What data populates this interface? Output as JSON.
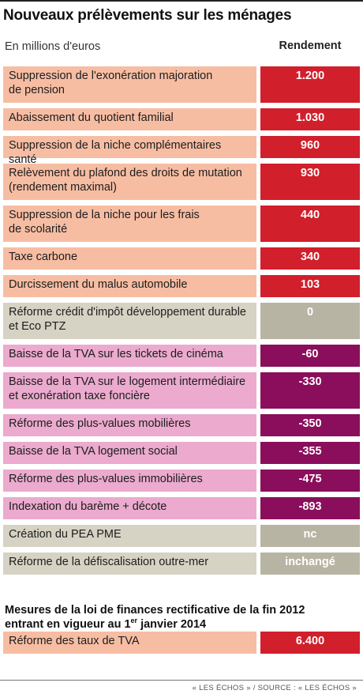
{
  "title": "Nouveaux prélèvements sur les ménages",
  "subtitle": "En millions d'euros",
  "column_header": "Rendement",
  "colors": {
    "positive_label_bg": "#f7bda3",
    "positive_value_bg": "#d11f2b",
    "zero_label_bg": "#d6d3c4",
    "zero_value_bg": "#b8b4a3",
    "negative_label_bg": "#ebaace",
    "negative_value_bg": "#8a0e5b"
  },
  "section2": {
    "title_line1": "Mesures de la loi de finances rectificative de la fin 2012",
    "title_line2_prefix": "entrant en vigueur au 1",
    "title_line2_sup": "er",
    "title_line2_suffix": " janvier 2014"
  },
  "source": "« LES ÉCHOS » / SOURCE : « LES ÉCHOS »",
  "chart_data": {
    "type": "table",
    "title": "Nouveaux prélèvements sur les ménages",
    "subtitle": "En millions d'euros",
    "column": "Rendement",
    "rows": [
      {
        "label_lines": [
          "Suppression de l'exonération majoration",
          "de pension"
        ],
        "value": "1.200",
        "numeric": 1200,
        "kind": "positive"
      },
      {
        "label_lines": [
          "Abaissement du quotient familial"
        ],
        "value": "1.030",
        "numeric": 1030,
        "kind": "positive"
      },
      {
        "label_lines": [
          "Suppression de la niche complémentaires santé"
        ],
        "value": "960",
        "numeric": 960,
        "kind": "positive"
      },
      {
        "label_lines": [
          "Relèvement du plafond des droits de mutation",
          "(rendement maximal)"
        ],
        "value": "930",
        "numeric": 930,
        "kind": "positive"
      },
      {
        "label_lines": [
          "Suppression de la niche pour les frais",
          "de scolarité"
        ],
        "value": "440",
        "numeric": 440,
        "kind": "positive"
      },
      {
        "label_lines": [
          "Taxe carbone"
        ],
        "value": "340",
        "numeric": 340,
        "kind": "positive"
      },
      {
        "label_lines": [
          "Durcissement du malus automobile"
        ],
        "value": "103",
        "numeric": 103,
        "kind": "positive"
      },
      {
        "label_lines": [
          "Réforme crédit d'impôt développement durable",
          "et Eco PTZ"
        ],
        "value": "0",
        "numeric": 0,
        "kind": "zero"
      },
      {
        "label_lines": [
          "Baisse de la TVA sur les tickets de cinéma"
        ],
        "value": "-60",
        "numeric": -60,
        "kind": "negative"
      },
      {
        "label_lines": [
          "Baisse de la TVA sur le logement intermédiaire",
          "et exonération taxe foncière"
        ],
        "value": "-330",
        "numeric": -330,
        "kind": "negative"
      },
      {
        "label_lines": [
          "Réforme des plus-values mobilières"
        ],
        "value": "-350",
        "numeric": -350,
        "kind": "negative"
      },
      {
        "label_lines": [
          "Baisse de la TVA logement social"
        ],
        "value": "-355",
        "numeric": -355,
        "kind": "negative"
      },
      {
        "label_lines": [
          "Réforme des plus-values immobilières"
        ],
        "value": "-475",
        "numeric": -475,
        "kind": "negative"
      },
      {
        "label_lines": [
          "Indexation du barème + décote"
        ],
        "value": "-893",
        "numeric": -893,
        "kind": "negative"
      },
      {
        "label_lines": [
          "Création du PEA PME"
        ],
        "value": "nc",
        "numeric": null,
        "kind": "zero"
      },
      {
        "label_lines": [
          "Réforme de la défiscalisation outre-mer"
        ],
        "value": "inchangé",
        "numeric": null,
        "kind": "zero"
      }
    ],
    "section2_rows": [
      {
        "label_lines": [
          "Réforme des taux de TVA"
        ],
        "value": "6.400",
        "numeric": 6400,
        "kind": "positive"
      }
    ]
  }
}
